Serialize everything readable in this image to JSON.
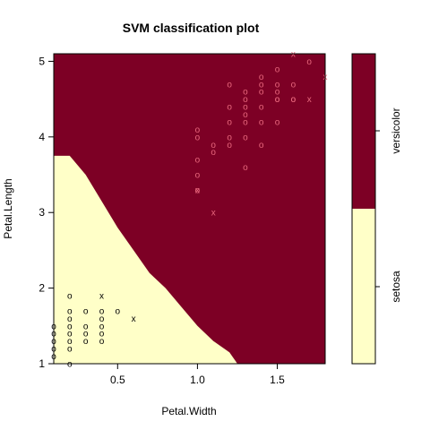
{
  "chart_data": {
    "type": "scatter",
    "title": "SVM classification plot",
    "xlabel": "Petal.Width",
    "ylabel": "Petal.Length",
    "xlim": [
      0.1,
      1.8
    ],
    "ylim": [
      1.0,
      5.1
    ],
    "x_ticks": [
      0.5,
      1.0,
      1.5
    ],
    "y_ticks": [
      1,
      2,
      3,
      4,
      5
    ],
    "legend_position": "right",
    "classes": [
      {
        "name": "setosa",
        "color": "#FFFFC8"
      },
      {
        "name": "versicolor",
        "color": "#7D0025"
      }
    ],
    "point_colors": {
      "setosa": "#000000",
      "versicolor": "#E8677D"
    },
    "decision_boundary": [
      [
        0.1,
        3.75
      ],
      [
        0.2,
        3.75
      ],
      [
        0.3,
        3.5
      ],
      [
        0.4,
        3.15
      ],
      [
        0.5,
        2.8
      ],
      [
        0.6,
        2.5
      ],
      [
        0.7,
        2.2
      ],
      [
        0.8,
        2.0
      ],
      [
        0.9,
        1.75
      ],
      [
        1.0,
        1.5
      ],
      [
        1.1,
        1.3
      ],
      [
        1.2,
        1.15
      ],
      [
        1.25,
        1.0
      ]
    ],
    "points": [
      {
        "x": 0.2,
        "y": 1.9,
        "class": "setosa",
        "sv": false
      },
      {
        "x": 0.4,
        "y": 1.9,
        "class": "setosa",
        "sv": true
      },
      {
        "x": 0.2,
        "y": 1.7,
        "class": "setosa",
        "sv": false
      },
      {
        "x": 0.3,
        "y": 1.7,
        "class": "setosa",
        "sv": false
      },
      {
        "x": 0.4,
        "y": 1.7,
        "class": "setosa",
        "sv": false
      },
      {
        "x": 0.5,
        "y": 1.7,
        "class": "setosa",
        "sv": false
      },
      {
        "x": 0.6,
        "y": 1.6,
        "class": "setosa",
        "sv": true
      },
      {
        "x": 0.2,
        "y": 1.6,
        "class": "setosa",
        "sv": false
      },
      {
        "x": 0.4,
        "y": 1.6,
        "class": "setosa",
        "sv": false
      },
      {
        "x": 0.2,
        "y": 1.5,
        "class": "setosa",
        "sv": false
      },
      {
        "x": 0.3,
        "y": 1.5,
        "class": "setosa",
        "sv": false
      },
      {
        "x": 0.4,
        "y": 1.5,
        "class": "setosa",
        "sv": false
      },
      {
        "x": 0.1,
        "y": 1.5,
        "class": "setosa",
        "sv": false
      },
      {
        "x": 0.2,
        "y": 1.4,
        "class": "setosa",
        "sv": false
      },
      {
        "x": 0.3,
        "y": 1.4,
        "class": "setosa",
        "sv": false
      },
      {
        "x": 0.1,
        "y": 1.4,
        "class": "setosa",
        "sv": false
      },
      {
        "x": 0.4,
        "y": 1.4,
        "class": "setosa",
        "sv": false
      },
      {
        "x": 0.2,
        "y": 1.3,
        "class": "setosa",
        "sv": false
      },
      {
        "x": 0.3,
        "y": 1.3,
        "class": "setosa",
        "sv": false
      },
      {
        "x": 0.4,
        "y": 1.3,
        "class": "setosa",
        "sv": false
      },
      {
        "x": 0.1,
        "y": 1.3,
        "class": "setosa",
        "sv": false
      },
      {
        "x": 0.2,
        "y": 1.2,
        "class": "setosa",
        "sv": false
      },
      {
        "x": 0.1,
        "y": 1.2,
        "class": "setosa",
        "sv": false
      },
      {
        "x": 0.1,
        "y": 1.1,
        "class": "setosa",
        "sv": false
      },
      {
        "x": 0.2,
        "y": 1.0,
        "class": "setosa",
        "sv": false
      },
      {
        "x": 1.7,
        "y": 5.0,
        "class": "versicolor",
        "sv": false
      },
      {
        "x": 1.6,
        "y": 5.1,
        "class": "versicolor",
        "sv": true
      },
      {
        "x": 1.8,
        "y": 4.8,
        "class": "versicolor",
        "sv": true
      },
      {
        "x": 1.5,
        "y": 4.9,
        "class": "versicolor",
        "sv": false
      },
      {
        "x": 1.4,
        "y": 4.8,
        "class": "versicolor",
        "sv": false
      },
      {
        "x": 1.4,
        "y": 4.7,
        "class": "versicolor",
        "sv": false
      },
      {
        "x": 1.5,
        "y": 4.7,
        "class": "versicolor",
        "sv": false
      },
      {
        "x": 1.6,
        "y": 4.7,
        "class": "versicolor",
        "sv": false
      },
      {
        "x": 1.2,
        "y": 4.7,
        "class": "versicolor",
        "sv": false
      },
      {
        "x": 1.3,
        "y": 4.6,
        "class": "versicolor",
        "sv": false
      },
      {
        "x": 1.4,
        "y": 4.6,
        "class": "versicolor",
        "sv": false
      },
      {
        "x": 1.5,
        "y": 4.6,
        "class": "versicolor",
        "sv": false
      },
      {
        "x": 1.3,
        "y": 4.5,
        "class": "versicolor",
        "sv": false
      },
      {
        "x": 1.5,
        "y": 4.5,
        "class": "versicolor",
        "sv": false
      },
      {
        "x": 1.6,
        "y": 4.5,
        "class": "versicolor",
        "sv": false
      },
      {
        "x": 1.3,
        "y": 4.4,
        "class": "versicolor",
        "sv": false
      },
      {
        "x": 1.4,
        "y": 4.4,
        "class": "versicolor",
        "sv": false
      },
      {
        "x": 1.2,
        "y": 4.4,
        "class": "versicolor",
        "sv": false
      },
      {
        "x": 1.3,
        "y": 4.3,
        "class": "versicolor",
        "sv": false
      },
      {
        "x": 1.5,
        "y": 4.5,
        "class": "versicolor",
        "sv": false
      },
      {
        "x": 1.6,
        "y": 4.5,
        "class": "versicolor",
        "sv": false
      },
      {
        "x": 1.7,
        "y": 4.5,
        "class": "versicolor",
        "sv": true
      },
      {
        "x": 1.3,
        "y": 4.2,
        "class": "versicolor",
        "sv": false
      },
      {
        "x": 1.2,
        "y": 4.2,
        "class": "versicolor",
        "sv": false
      },
      {
        "x": 1.4,
        "y": 4.2,
        "class": "versicolor",
        "sv": false
      },
      {
        "x": 1.0,
        "y": 4.1,
        "class": "versicolor",
        "sv": false
      },
      {
        "x": 1.3,
        "y": 4.0,
        "class": "versicolor",
        "sv": false
      },
      {
        "x": 1.2,
        "y": 4.0,
        "class": "versicolor",
        "sv": false
      },
      {
        "x": 1.5,
        "y": 4.2,
        "class": "versicolor",
        "sv": false
      },
      {
        "x": 1.0,
        "y": 4.0,
        "class": "versicolor",
        "sv": false
      },
      {
        "x": 1.1,
        "y": 3.9,
        "class": "versicolor",
        "sv": false
      },
      {
        "x": 1.2,
        "y": 3.9,
        "class": "versicolor",
        "sv": false
      },
      {
        "x": 1.4,
        "y": 3.9,
        "class": "versicolor",
        "sv": false
      },
      {
        "x": 1.1,
        "y": 3.8,
        "class": "versicolor",
        "sv": false
      },
      {
        "x": 1.0,
        "y": 3.7,
        "class": "versicolor",
        "sv": false
      },
      {
        "x": 1.3,
        "y": 3.6,
        "class": "versicolor",
        "sv": false
      },
      {
        "x": 1.0,
        "y": 3.5,
        "class": "versicolor",
        "sv": false
      },
      {
        "x": 1.0,
        "y": 3.3,
        "class": "versicolor",
        "sv": false
      },
      {
        "x": 1.0,
        "y": 3.3,
        "class": "versicolor",
        "sv": true
      },
      {
        "x": 1.1,
        "y": 3.0,
        "class": "versicolor",
        "sv": true
      }
    ]
  }
}
